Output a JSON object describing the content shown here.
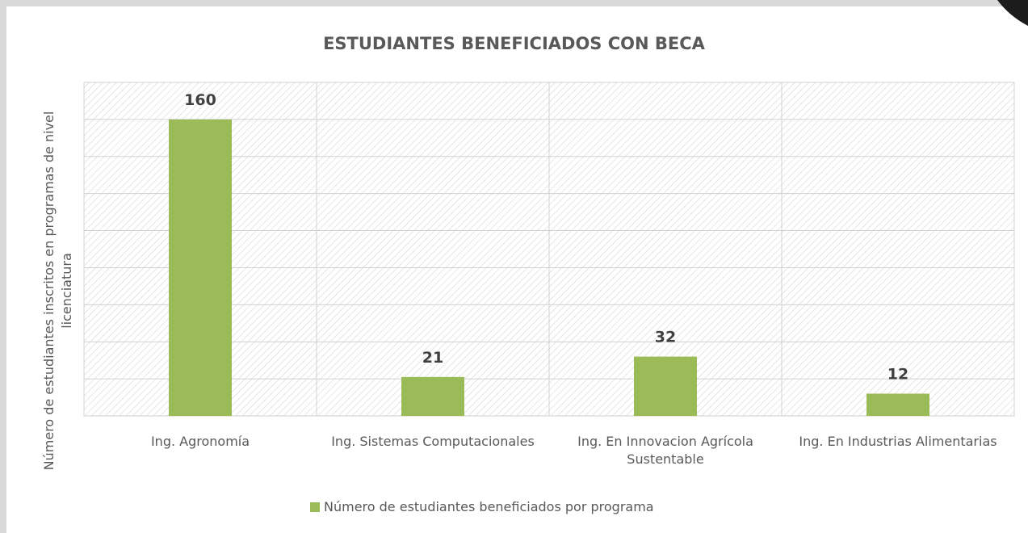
{
  "chart_data": {
    "type": "bar",
    "title": "ESTUDIANTES BENEFICIADOS CON BECA",
    "y_axis_label": "Número de estudiantes inscritos en programas de nivel licenciatura",
    "categories": [
      "Ing. Agronomía",
      "Ing. Sistemas Computacionales",
      "Ing. En Innovacion Agrícola Sustentable",
      "Ing. En Industrias Alimentarias"
    ],
    "series": [
      {
        "name": "Número de estudiantes beneficiados por programa",
        "color": "#9bbb59",
        "values": [
          160,
          21,
          32,
          12
        ]
      }
    ],
    "ylim": [
      0,
      180
    ],
    "yticks": [
      0,
      20,
      40,
      60,
      80,
      100,
      120,
      140,
      160,
      180
    ],
    "ytick_labels": false,
    "grid": true,
    "data_labels": true,
    "legend": "bottom"
  }
}
